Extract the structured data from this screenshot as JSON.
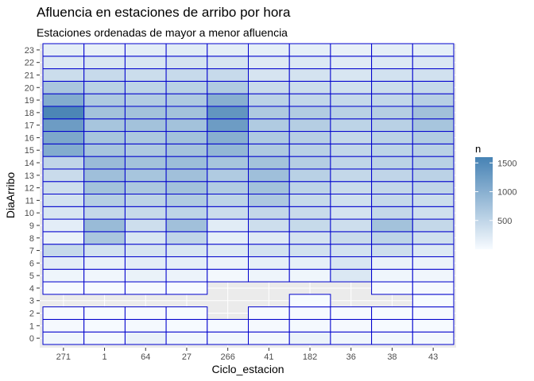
{
  "chart_data": {
    "type": "heatmap",
    "title": "Afluencia en estaciones de arribo por hora",
    "subtitle": "Estaciones ordenadas de mayor a menor afluencia",
    "xlabel": "Ciclo_estacion",
    "ylabel": "DiaArribo",
    "x": [
      "271",
      "1",
      "64",
      "27",
      "266",
      "41",
      "182",
      "36",
      "38",
      "43"
    ],
    "y": [
      "0",
      "1",
      "2",
      "3",
      "4",
      "5",
      "6",
      "7",
      "8",
      "9",
      "10",
      "11",
      "12",
      "13",
      "14",
      "15",
      "16",
      "17",
      "18",
      "19",
      "20",
      "21",
      "22",
      "23"
    ],
    "values": [
      [
        60,
        30,
        130,
        50,
        50,
        40,
        110,
        60,
        50,
        40
      ],
      [
        20,
        10,
        30,
        10,
        10,
        20,
        30,
        20,
        10,
        10
      ],
      [
        10,
        5,
        10,
        5,
        null,
        10,
        10,
        10,
        5,
        10
      ],
      [
        null,
        null,
        null,
        null,
        null,
        null,
        5,
        null,
        null,
        5
      ],
      [
        10,
        10,
        20,
        10,
        null,
        null,
        null,
        null,
        20,
        20
      ],
      [
        80,
        60,
        120,
        100,
        40,
        80,
        70,
        250,
        70,
        60
      ],
      [
        180,
        130,
        180,
        160,
        100,
        150,
        150,
        280,
        120,
        110
      ],
      [
        450,
        330,
        300,
        280,
        230,
        330,
        340,
        330,
        380,
        240
      ],
      [
        120,
        700,
        280,
        500,
        160,
        220,
        320,
        420,
        520,
        360
      ],
      [
        180,
        850,
        380,
        780,
        200,
        380,
        440,
        380,
        760,
        460
      ],
      [
        280,
        460,
        440,
        520,
        400,
        470,
        420,
        320,
        460,
        360
      ],
      [
        330,
        600,
        530,
        640,
        520,
        670,
        440,
        360,
        450,
        400
      ],
      [
        380,
        760,
        680,
        760,
        620,
        760,
        520,
        420,
        470,
        500
      ],
      [
        420,
        800,
        720,
        780,
        640,
        800,
        560,
        460,
        500,
        540
      ],
      [
        500,
        840,
        760,
        820,
        720,
        760,
        600,
        500,
        540,
        560
      ],
      [
        1050,
        720,
        660,
        740,
        900,
        660,
        560,
        480,
        520,
        560
      ],
      [
        1100,
        720,
        680,
        760,
        1000,
        650,
        580,
        460,
        540,
        620
      ],
      [
        1250,
        720,
        760,
        760,
        1250,
        640,
        600,
        520,
        560,
        720
      ],
      [
        1550,
        760,
        760,
        760,
        1350,
        660,
        620,
        560,
        600,
        780
      ],
      [
        1050,
        660,
        620,
        660,
        1000,
        540,
        480,
        450,
        480,
        580
      ],
      [
        700,
        560,
        520,
        560,
        640,
        420,
        400,
        360,
        400,
        450
      ],
      [
        400,
        430,
        400,
        430,
        430,
        300,
        320,
        280,
        330,
        340
      ],
      [
        250,
        280,
        280,
        320,
        300,
        230,
        240,
        210,
        240,
        260
      ],
      [
        170,
        140,
        180,
        200,
        170,
        160,
        160,
        140,
        170,
        160
      ]
    ],
    "color_scale": {
      "low": "#f7fbff",
      "high": "#4682b4",
      "range": [
        0,
        1600
      ],
      "title": "n",
      "ticks": [
        500,
        1000,
        1500
      ]
    },
    "tile_border_color": "#0000cd",
    "background": "#ebebeb",
    "grid": true,
    "legend_position": "right"
  }
}
